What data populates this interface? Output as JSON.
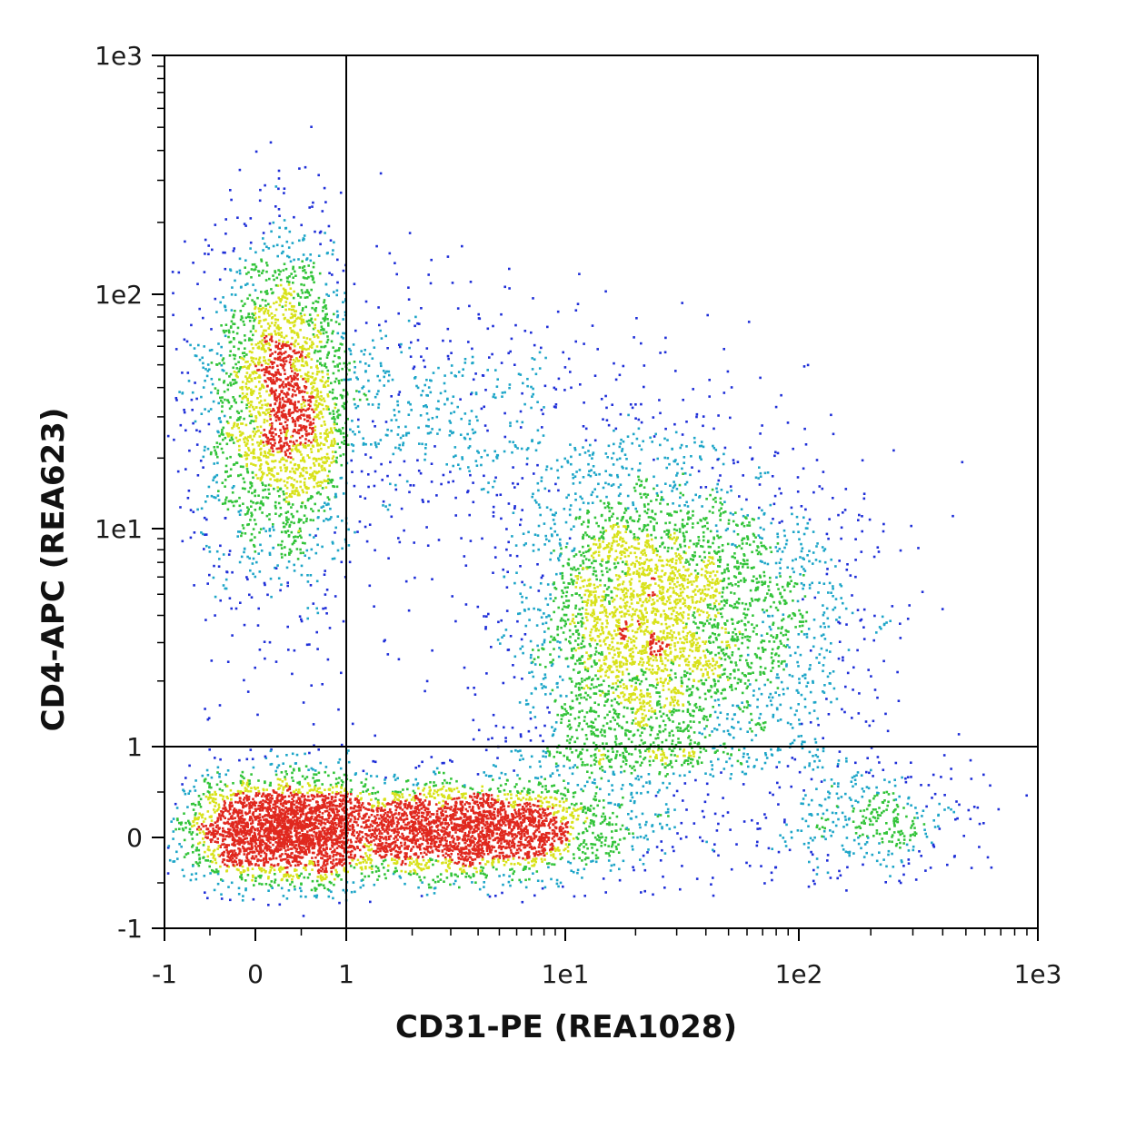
{
  "chart_data": {
    "type": "scatter",
    "subtype": "flow-cytometry-density-dotplot",
    "xlabel": "CD31-PE (REA1028)",
    "ylabel": "CD4-APC (REA623)",
    "x_scale": "biexponential",
    "y_scale": "biexponential",
    "xlim": [
      -1,
      1000
    ],
    "ylim": [
      -1,
      1000
    ],
    "x_ticks": [
      {
        "value": -1,
        "label": "-1"
      },
      {
        "value": 0,
        "label": "0"
      },
      {
        "value": 1,
        "label": "1"
      },
      {
        "value": 10,
        "label": "1e1"
      },
      {
        "value": 100,
        "label": "1e2"
      },
      {
        "value": 1000,
        "label": "1e3"
      }
    ],
    "y_ticks": [
      {
        "value": -1,
        "label": "-1"
      },
      {
        "value": 0,
        "label": "0"
      },
      {
        "value": 1,
        "label": "1"
      },
      {
        "value": 10,
        "label": "1e1"
      },
      {
        "value": 100,
        "label": "1e2"
      },
      {
        "value": 1000,
        "label": "1e3"
      }
    ],
    "quadrant_gate": {
      "x": 1,
      "y": 1
    },
    "populations": [
      {
        "x_center": 0.3,
        "y_center": 35,
        "x_spread": 0.45,
        "y_spread": 0.35,
        "density": "high"
      },
      {
        "x_center": 3.0,
        "y_center": 33,
        "x_spread": 0.3,
        "y_spread": 0.25,
        "density": "low"
      },
      {
        "x_center": 0.3,
        "y_center": 0.1,
        "x_spread": 0.55,
        "y_spread": 0.28,
        "density": "high"
      },
      {
        "x_center": 3.5,
        "y_center": 0.1,
        "x_spread": 0.35,
        "y_spread": 0.25,
        "density": "high"
      },
      {
        "x_center": 18,
        "y_center": 3.5,
        "x_spread": 0.25,
        "y_spread": 0.45,
        "density": "high"
      },
      {
        "x_center": 50,
        "y_center": 4.0,
        "x_spread": 0.3,
        "y_spread": 0.35,
        "density": "medium"
      },
      {
        "x_center": 200,
        "y_center": 0.2,
        "x_spread": 0.2,
        "y_spread": 0.3,
        "density": "low"
      }
    ],
    "grid": false,
    "legend": "none",
    "colors": {
      "low": "#1f2fd8",
      "medium": "#1ea6c8",
      "high": "#33c43a",
      "peak": "#d8e21a",
      "max": "#e0281e",
      "axes": "#000000"
    }
  }
}
